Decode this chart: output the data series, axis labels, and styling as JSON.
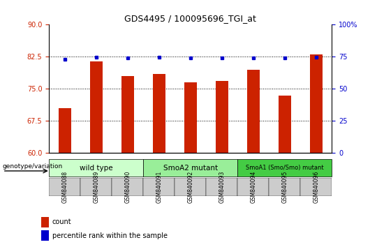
{
  "title": "GDS4495 / 100095696_TGI_at",
  "samples": [
    "GSM840088",
    "GSM840089",
    "GSM840090",
    "GSM840091",
    "GSM840092",
    "GSM840093",
    "GSM840094",
    "GSM840095",
    "GSM840096"
  ],
  "count_values": [
    70.5,
    81.5,
    78.0,
    78.5,
    76.5,
    76.8,
    79.5,
    73.5,
    83.0
  ],
  "percentile_values": [
    73.0,
    74.5,
    74.0,
    74.5,
    74.0,
    74.0,
    74.0,
    74.0,
    74.5
  ],
  "ylim_left": [
    60,
    90
  ],
  "ylim_right": [
    0,
    100
  ],
  "yticks_left": [
    60,
    67.5,
    75,
    82.5,
    90
  ],
  "yticks_right": [
    0,
    25,
    50,
    75,
    100
  ],
  "grid_values": [
    67.5,
    75,
    82.5
  ],
  "bar_color": "#cc2200",
  "dot_color": "#0000cc",
  "groups": [
    {
      "label": "wild type",
      "indices": [
        0,
        1,
        2
      ],
      "color": "#ccffcc"
    },
    {
      "label": "SmoA2 mutant",
      "indices": [
        3,
        4,
        5
      ],
      "color": "#99ee99"
    },
    {
      "label": "SmoA1 (Smo/Smo) mutant",
      "indices": [
        6,
        7,
        8
      ],
      "color": "#44cc44"
    }
  ],
  "genotype_label": "genotype/variation",
  "legend_count_label": "count",
  "legend_percentile_label": "percentile rank within the sample",
  "bar_width": 0.4,
  "left_tick_color": "#cc2200",
  "right_tick_color": "#0000cc",
  "background_color": "#ffffff",
  "plot_bg_color": "#ffffff",
  "header_bg_color": "#cccccc"
}
